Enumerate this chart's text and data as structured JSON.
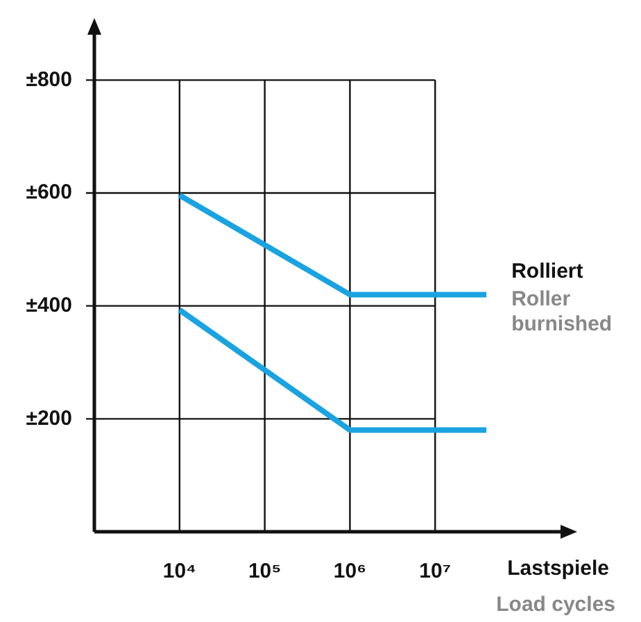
{
  "chart_data": {
    "type": "line",
    "xlabel": "Lastspiele",
    "annotations": [
      "Roller burnished",
      "Load cycles"
    ],
    "log": "x",
    "grid": true,
    "legend": false,
    "marker": "none",
    "line_style": "solid",
    "xlim": [
      1000,
      400000000
    ],
    "ylim": [
      0,
      900
    ],
    "xticks": [
      {
        "value": 10000,
        "label": "10⁴"
      },
      {
        "value": 100000,
        "label": "10⁵"
      },
      {
        "value": 1000000,
        "label": "10⁶"
      },
      {
        "value": 10000000,
        "label": "10⁷"
      }
    ],
    "yticks": [
      {
        "value": 200,
        "label": "±200"
      },
      {
        "value": 400,
        "label": "±400"
      },
      {
        "value": 600,
        "label": "±600"
      },
      {
        "value": 800,
        "label": "±800"
      }
    ],
    "series": [
      {
        "name": "Rolliert",
        "color": "#1aa3e0",
        "x": [
          10000,
          1000000,
          40000000
        ],
        "values": [
          596,
          420,
          420
        ]
      },
      {
        "color": "#1aa3e0",
        "x": [
          10000,
          1000000,
          40000000
        ],
        "values": [
          393,
          180,
          180
        ]
      }
    ]
  }
}
